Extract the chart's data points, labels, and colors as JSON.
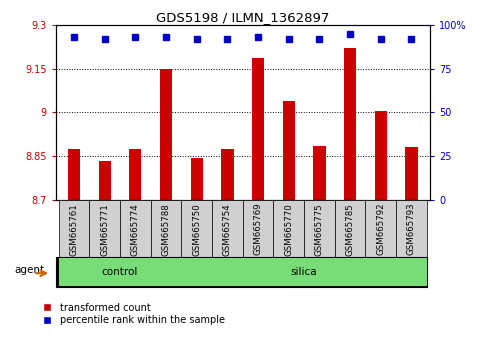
{
  "title": "GDS5198 / ILMN_1362897",
  "samples": [
    "GSM665761",
    "GSM665771",
    "GSM665774",
    "GSM665788",
    "GSM665750",
    "GSM665754",
    "GSM665769",
    "GSM665770",
    "GSM665775",
    "GSM665785",
    "GSM665792",
    "GSM665793"
  ],
  "red_values": [
    8.875,
    8.835,
    8.875,
    9.15,
    8.845,
    8.875,
    9.185,
    9.04,
    8.885,
    9.22,
    9.005,
    8.883
  ],
  "blue_values": [
    93,
    92,
    93,
    93,
    92,
    92,
    93,
    92,
    92,
    95,
    92,
    92
  ],
  "ylim_left": [
    8.7,
    9.3
  ],
  "ylim_right": [
    0,
    100
  ],
  "yticks_left": [
    8.7,
    8.85,
    9.0,
    9.15,
    9.3
  ],
  "yticks_right": [
    0,
    25,
    50,
    75,
    100
  ],
  "ytick_labels_left": [
    "8.7",
    "8.85",
    "9",
    "9.15",
    "9.3"
  ],
  "ytick_labels_right": [
    "0",
    "25",
    "50",
    "75",
    "100%"
  ],
  "red_color": "#cc0000",
  "blue_color": "#0000cc",
  "bar_width": 0.4,
  "baseline": 8.7,
  "grid_lines": [
    8.85,
    9.0,
    9.15
  ],
  "legend_red": "transformed count",
  "legend_blue": "percentile rank within the sample",
  "control_count": 4,
  "silica_count": 8,
  "group_bar_color": "#77dd77",
  "sample_box_color": "#d0d0d0",
  "agent_arrow_color": "#cc6600"
}
